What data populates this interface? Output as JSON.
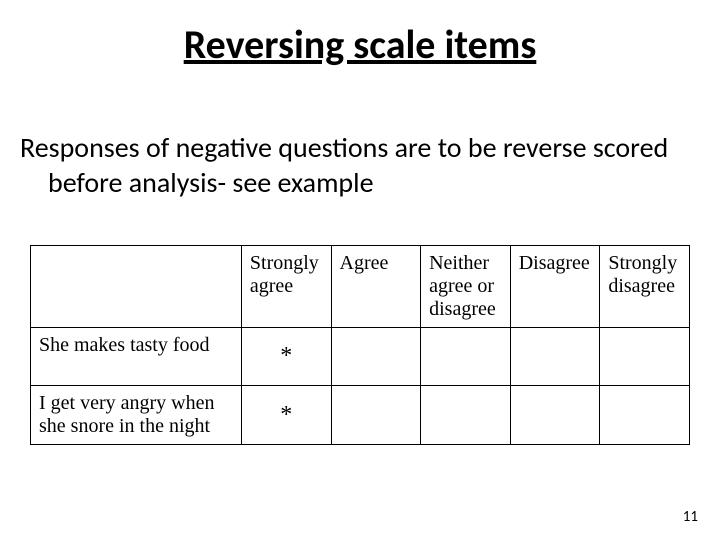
{
  "title": "Reversing scale items",
  "body": "Responses of negative questions are to be reverse scored before analysis- see example",
  "table": {
    "type": "table",
    "columns": [
      "",
      "Strongly agree",
      "Agree",
      "Neither agree or disagree",
      "Disagree",
      "Strongly disagree"
    ],
    "rows": [
      {
        "label": "She makes tasty food",
        "marks": [
          "*",
          "",
          "",
          "",
          ""
        ]
      },
      {
        "label": "I get very angry when she snore in the night",
        "marks": [
          "*",
          "",
          "",
          "",
          ""
        ]
      }
    ],
    "border_color": "#000000",
    "background_color": "#ffffff",
    "header_fontsize": 20,
    "cell_fontsize": 20,
    "mark_fontsize": 24,
    "font_family": "Times New Roman"
  },
  "page_number": "11",
  "style": {
    "title_fontsize": 40,
    "title_font_family": "Calibri",
    "title_underline": true,
    "body_fontsize": 28,
    "body_font_family": "Calibri",
    "background_color": "#ffffff",
    "text_color": "#000000",
    "page_number_fontsize": 15
  }
}
